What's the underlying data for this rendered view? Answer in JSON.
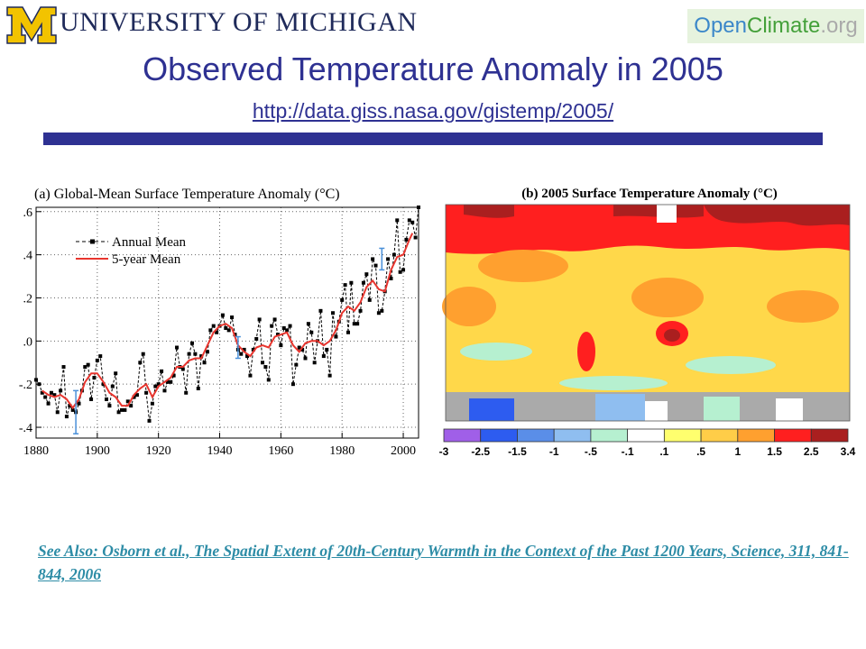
{
  "header": {
    "logo_icon": "block-m-logo",
    "university": "UNIVERSITY OF MICHIGAN",
    "brand_open": "Open",
    "brand_climate": "Climate",
    "brand_org": ".org",
    "title": "Observed Temperature Anomaly in 2005",
    "url": "http://data.giss.nasa.gov/gistemp/2005/",
    "colors": {
      "title": "#2e3192",
      "bar": "#2e3192",
      "logo_yellow": "#f2c300"
    }
  },
  "chart_data": [
    {
      "type": "line",
      "title": "(a)  Global-Mean Surface Temperature Anomaly (°C)",
      "xlim": [
        1880,
        2005
      ],
      "ylim": [
        -0.45,
        0.62
      ],
      "xticks": [
        "1880",
        "1900",
        "1920",
        "1940",
        "1960",
        "1980",
        "2000"
      ],
      "yticks": [
        ".6",
        ".4",
        ".2",
        ".0",
        "-.2",
        "-.4"
      ],
      "legend_position": "top-left",
      "grid": "dotted",
      "series": [
        {
          "name": "Annual Mean",
          "style": "dashed-squares",
          "color": "#000000",
          "x": [
            1880,
            1881,
            1882,
            1883,
            1884,
            1885,
            1886,
            1887,
            1888,
            1889,
            1890,
            1891,
            1892,
            1893,
            1894,
            1895,
            1896,
            1897,
            1898,
            1899,
            1900,
            1901,
            1902,
            1903,
            1904,
            1905,
            1906,
            1907,
            1908,
            1909,
            1910,
            1911,
            1912,
            1913,
            1914,
            1915,
            1916,
            1917,
            1918,
            1919,
            1920,
            1921,
            1922,
            1923,
            1924,
            1925,
            1926,
            1927,
            1928,
            1929,
            1930,
            1931,
            1932,
            1933,
            1934,
            1935,
            1936,
            1937,
            1938,
            1939,
            1940,
            1941,
            1942,
            1943,
            1944,
            1945,
            1946,
            1947,
            1948,
            1949,
            1950,
            1951,
            1952,
            1953,
            1954,
            1955,
            1956,
            1957,
            1958,
            1959,
            1960,
            1961,
            1962,
            1963,
            1964,
            1965,
            1966,
            1967,
            1968,
            1969,
            1970,
            1971,
            1972,
            1973,
            1974,
            1975,
            1976,
            1977,
            1978,
            1979,
            1980,
            1981,
            1982,
            1983,
            1984,
            1985,
            1986,
            1987,
            1988,
            1989,
            1990,
            1991,
            1992,
            1993,
            1994,
            1995,
            1996,
            1997,
            1998,
            1999,
            2000,
            2001,
            2002,
            2003,
            2004,
            2005
          ],
          "y": [
            -0.18,
            -0.2,
            -0.24,
            -0.26,
            -0.29,
            -0.24,
            -0.25,
            -0.33,
            -0.23,
            -0.12,
            -0.35,
            -0.3,
            -0.32,
            -0.33,
            -0.29,
            -0.23,
            -0.12,
            -0.11,
            -0.27,
            -0.17,
            -0.09,
            -0.07,
            -0.2,
            -0.27,
            -0.3,
            -0.21,
            -0.15,
            -0.33,
            -0.32,
            -0.32,
            -0.28,
            -0.3,
            -0.26,
            -0.25,
            -0.1,
            -0.06,
            -0.24,
            -0.37,
            -0.29,
            -0.21,
            -0.2,
            -0.14,
            -0.23,
            -0.19,
            -0.19,
            -0.16,
            -0.03,
            -0.12,
            -0.13,
            -0.24,
            -0.06,
            -0.01,
            -0.06,
            -0.22,
            -0.07,
            -0.1,
            -0.05,
            0.05,
            0.07,
            0.04,
            0.07,
            0.12,
            0.06,
            0.05,
            0.11,
            0.03,
            -0.04,
            -0.06,
            -0.04,
            -0.07,
            -0.16,
            -0.04,
            0.01,
            0.1,
            -0.1,
            -0.12,
            -0.18,
            0.07,
            0.1,
            0.03,
            -0.02,
            0.06,
            0.05,
            0.07,
            -0.2,
            -0.11,
            -0.03,
            -0.04,
            -0.08,
            0.08,
            0.04,
            -0.1,
            0.0,
            0.14,
            -0.07,
            -0.04,
            -0.16,
            0.13,
            0.02,
            0.09,
            0.19,
            0.26,
            0.04,
            0.27,
            0.08,
            0.08,
            0.14,
            0.27,
            0.31,
            0.19,
            0.38,
            0.35,
            0.13,
            0.14,
            0.23,
            0.38,
            0.29,
            0.4,
            0.56,
            0.32,
            0.33,
            0.47,
            0.56,
            0.55,
            0.48,
            0.62
          ]
        },
        {
          "name": "5-year Mean",
          "style": "solid",
          "color": "#e8352e",
          "x": [
            1882,
            1884,
            1886,
            1888,
            1890,
            1892,
            1894,
            1896,
            1898,
            1900,
            1902,
            1904,
            1906,
            1908,
            1910,
            1912,
            1914,
            1916,
            1918,
            1920,
            1922,
            1924,
            1926,
            1928,
            1930,
            1932,
            1934,
            1936,
            1938,
            1940,
            1942,
            1944,
            1946,
            1948,
            1950,
            1952,
            1954,
            1956,
            1958,
            1960,
            1962,
            1964,
            1966,
            1968,
            1970,
            1972,
            1974,
            1976,
            1978,
            1980,
            1982,
            1984,
            1986,
            1988,
            1990,
            1992,
            1994,
            1996,
            1998,
            2000,
            2002,
            2003
          ],
          "y": [
            -0.23,
            -0.25,
            -0.26,
            -0.25,
            -0.27,
            -0.31,
            -0.27,
            -0.19,
            -0.15,
            -0.15,
            -0.19,
            -0.24,
            -0.26,
            -0.3,
            -0.3,
            -0.25,
            -0.22,
            -0.2,
            -0.26,
            -0.21,
            -0.19,
            -0.17,
            -0.12,
            -0.12,
            -0.09,
            -0.08,
            -0.08,
            -0.02,
            0.04,
            0.07,
            0.08,
            0.06,
            -0.02,
            -0.05,
            -0.07,
            -0.03,
            -0.02,
            -0.03,
            0.02,
            0.03,
            0.04,
            -0.02,
            -0.05,
            -0.01,
            0.0,
            0.0,
            -0.02,
            0.0,
            0.05,
            0.13,
            0.16,
            0.14,
            0.18,
            0.25,
            0.28,
            0.24,
            0.23,
            0.33,
            0.39,
            0.4,
            0.47,
            0.5
          ]
        },
        {
          "name": "error-bars",
          "color": "#4a90d9",
          "x": [
            1893,
            1946,
            1993
          ],
          "y": [
            -0.33,
            -0.03,
            0.38
          ],
          "error": [
            0.1,
            0.05,
            0.05
          ]
        }
      ]
    },
    {
      "type": "heatmap",
      "title": "(b) 2005 Surface Temperature Anomaly (°C)",
      "colorbar": {
        "labels": [
          "-3",
          "-2.5",
          "-1.5",
          "-1",
          "-.5",
          "-.1",
          ".1",
          ".5",
          "1",
          "1.5",
          "2.5",
          "3.4"
        ],
        "colors": [
          "#a05fe8",
          "#2d5cf0",
          "#5a8ee8",
          "#8fbef0",
          "#b6f0d0",
          "#ffffff",
          "#ffff6e",
          "#ffcd48",
          "#ffa02f",
          "#ff1f1f",
          "#aa1f1f"
        ]
      }
    }
  ],
  "footer": {
    "see_also": "See Also: Osborn et al., The Spatial Extent of 20th-Century Warmth in the Context of the Past 1200 Years, Science, 311, 841-844, 2006"
  }
}
